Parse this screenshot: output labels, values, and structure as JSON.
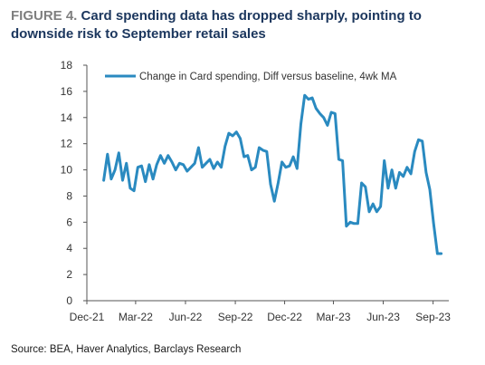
{
  "header": {
    "figure_label": "FIGURE 4.",
    "title": "Card spending data has dropped sharply, pointing to downside risk to September retail sales"
  },
  "source": "Source: BEA, Haver Analytics, Barclays Research",
  "colors": {
    "line": "#2a8ac0",
    "axis": "#555555",
    "title": "#1b365d",
    "figure_label": "#7f7f7f"
  },
  "chart_data": {
    "type": "line",
    "title": "Card spending data has dropped sharply, pointing to downside risk to September retail sales",
    "xlabel": "",
    "ylabel": "",
    "ylim": [
      0,
      18
    ],
    "yticks": [
      0,
      2,
      4,
      6,
      8,
      10,
      12,
      14,
      16,
      18
    ],
    "xlim": [
      "2021-12-01",
      "2023-09-30"
    ],
    "xticks": [
      {
        "label": "Dec-21",
        "date": "2021-12-01"
      },
      {
        "label": "Mar-22",
        "date": "2022-03-01"
      },
      {
        "label": "Jun-22",
        "date": "2022-06-01"
      },
      {
        "label": "Sep-22",
        "date": "2022-09-01"
      },
      {
        "label": "Dec-22",
        "date": "2022-12-01"
      },
      {
        "label": "Mar-23",
        "date": "2023-03-01"
      },
      {
        "label": "Jun-23",
        "date": "2023-06-01"
      },
      {
        "label": "Sep-23",
        "date": "2023-09-01"
      }
    ],
    "grid": false,
    "legend": "top",
    "series": [
      {
        "name": "Change in Card spending, Diff versus baseline, 4wk MA",
        "x": [
          "2022-01-01",
          "2022-01-08",
          "2022-01-15",
          "2022-01-22",
          "2022-01-29",
          "2022-02-05",
          "2022-02-12",
          "2022-02-19",
          "2022-02-26",
          "2022-03-05",
          "2022-03-12",
          "2022-03-19",
          "2022-03-26",
          "2022-04-02",
          "2022-04-09",
          "2022-04-16",
          "2022-04-23",
          "2022-04-30",
          "2022-05-07",
          "2022-05-14",
          "2022-05-21",
          "2022-05-28",
          "2022-06-04",
          "2022-06-11",
          "2022-06-18",
          "2022-06-25",
          "2022-07-02",
          "2022-07-09",
          "2022-07-16",
          "2022-07-23",
          "2022-07-30",
          "2022-08-06",
          "2022-08-13",
          "2022-08-20",
          "2022-08-27",
          "2022-09-03",
          "2022-09-10",
          "2022-09-17",
          "2022-09-24",
          "2022-10-01",
          "2022-10-08",
          "2022-10-15",
          "2022-10-22",
          "2022-10-29",
          "2022-11-05",
          "2022-11-12",
          "2022-11-19",
          "2022-11-26",
          "2022-12-03",
          "2022-12-10",
          "2022-12-17",
          "2022-12-24",
          "2022-12-31",
          "2023-01-07",
          "2023-01-14",
          "2023-01-21",
          "2023-01-28",
          "2023-02-04",
          "2023-02-11",
          "2023-02-18",
          "2023-02-25",
          "2023-03-04",
          "2023-03-11",
          "2023-03-18",
          "2023-03-25",
          "2023-04-01",
          "2023-04-08",
          "2023-04-15",
          "2023-04-22",
          "2023-04-29",
          "2023-05-06",
          "2023-05-13",
          "2023-05-20",
          "2023-05-27",
          "2023-06-03",
          "2023-06-10",
          "2023-06-17",
          "2023-06-24",
          "2023-07-01",
          "2023-07-08",
          "2023-07-15",
          "2023-07-22",
          "2023-07-29",
          "2023-08-05",
          "2023-08-12",
          "2023-08-19",
          "2023-08-26",
          "2023-09-02",
          "2023-09-09",
          "2023-09-16"
        ],
        "values": [
          9.2,
          11.2,
          9.3,
          10.0,
          11.3,
          9.2,
          10.5,
          8.6,
          8.4,
          10.2,
          10.3,
          9.1,
          10.4,
          9.3,
          10.4,
          11.1,
          10.5,
          11.1,
          10.6,
          10.0,
          10.5,
          10.4,
          9.9,
          10.2,
          10.5,
          11.7,
          10.2,
          10.5,
          10.8,
          10.1,
          10.6,
          10.2,
          11.8,
          12.8,
          12.6,
          12.9,
          12.4,
          11.0,
          11.1,
          10.0,
          10.2,
          11.7,
          11.5,
          11.4,
          8.9,
          7.6,
          9.0,
          10.6,
          10.2,
          10.3,
          11.0,
          10.1,
          13.5,
          15.7,
          15.4,
          15.5,
          14.7,
          14.3,
          14.0,
          13.4,
          14.4,
          14.3,
          10.8,
          10.7,
          5.7,
          6.0,
          5.9,
          5.9,
          9.0,
          8.7,
          6.8,
          7.4,
          6.8,
          7.2,
          10.7,
          8.6,
          10.0,
          8.6,
          9.8,
          9.5,
          10.2,
          9.7,
          11.4,
          12.3,
          12.2,
          9.8,
          8.5,
          5.9,
          3.6,
          3.6
        ]
      }
    ]
  }
}
